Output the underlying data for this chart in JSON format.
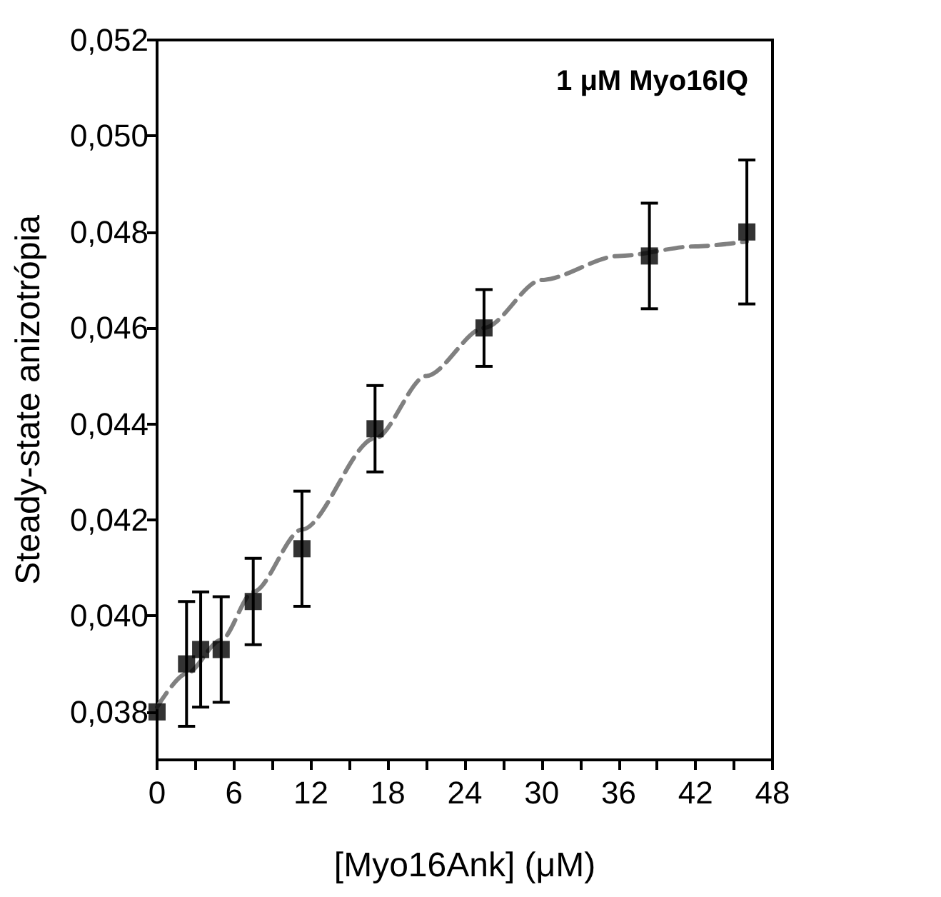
{
  "chart_data": {
    "type": "scatter",
    "title": "1 μM Myo16IQ",
    "xlabel": "[Myo16Ank] (μM)",
    "ylabel": "Steady-state anizotrópia",
    "xlim": [
      0,
      48
    ],
    "xticks": [
      0,
      {
        "value": 3,
        "label": null
      },
      6,
      {
        "value": 9,
        "label": null
      },
      12,
      {
        "value": 15,
        "label": null
      },
      18,
      {
        "value": 21,
        "label": null
      },
      24,
      {
        "value": 27,
        "label": null
      },
      30,
      {
        "value": 33,
        "label": null
      },
      36,
      {
        "value": 39,
        "label": null
      },
      42,
      {
        "value": 45,
        "label": null
      },
      48
    ],
    "ylim": [
      0.037,
      0.052
    ],
    "yticks": [
      {
        "value": 0.038,
        "label": "0,038"
      },
      {
        "value": 0.04,
        "label": "0,040"
      },
      {
        "value": 0.042,
        "label": "0,042"
      },
      {
        "value": 0.044,
        "label": "0,044"
      },
      {
        "value": 0.046,
        "label": "0,046"
      },
      {
        "value": 0.048,
        "label": "0,048"
      },
      {
        "value": 0.05,
        "label": "0,050"
      },
      {
        "value": 0.052,
        "label": "0,052"
      }
    ],
    "grid": false,
    "series": [
      {
        "type": "scatter",
        "color": "#000000",
        "marker": "square",
        "x": [
          0,
          2.3,
          3.4,
          5.0,
          7.5,
          11.3,
          17.0,
          25.5,
          38.4,
          46.0
        ],
        "values": [
          0.038,
          0.039,
          0.0393,
          0.0393,
          0.0403,
          0.0414,
          0.0439,
          0.046,
          0.0475,
          0.048
        ],
        "errors": [
          null,
          0.0013,
          0.0012,
          0.0011,
          0.0009,
          0.0012,
          0.0009,
          0.0008,
          0.0011,
          0.0015
        ]
      },
      {
        "type": "line",
        "color": "#808080",
        "marker": "none",
        "line_style": "dashed",
        "x": [
          0,
          2.3,
          5,
          7.5,
          11.3,
          17,
          21,
          25.5,
          30,
          36,
          42,
          46
        ],
        "values": [
          0.0381,
          0.0388,
          0.0395,
          0.0405,
          0.0418,
          0.0437,
          0.045,
          0.046,
          0.047,
          0.0475,
          0.0477,
          0.0478
        ]
      }
    ]
  }
}
